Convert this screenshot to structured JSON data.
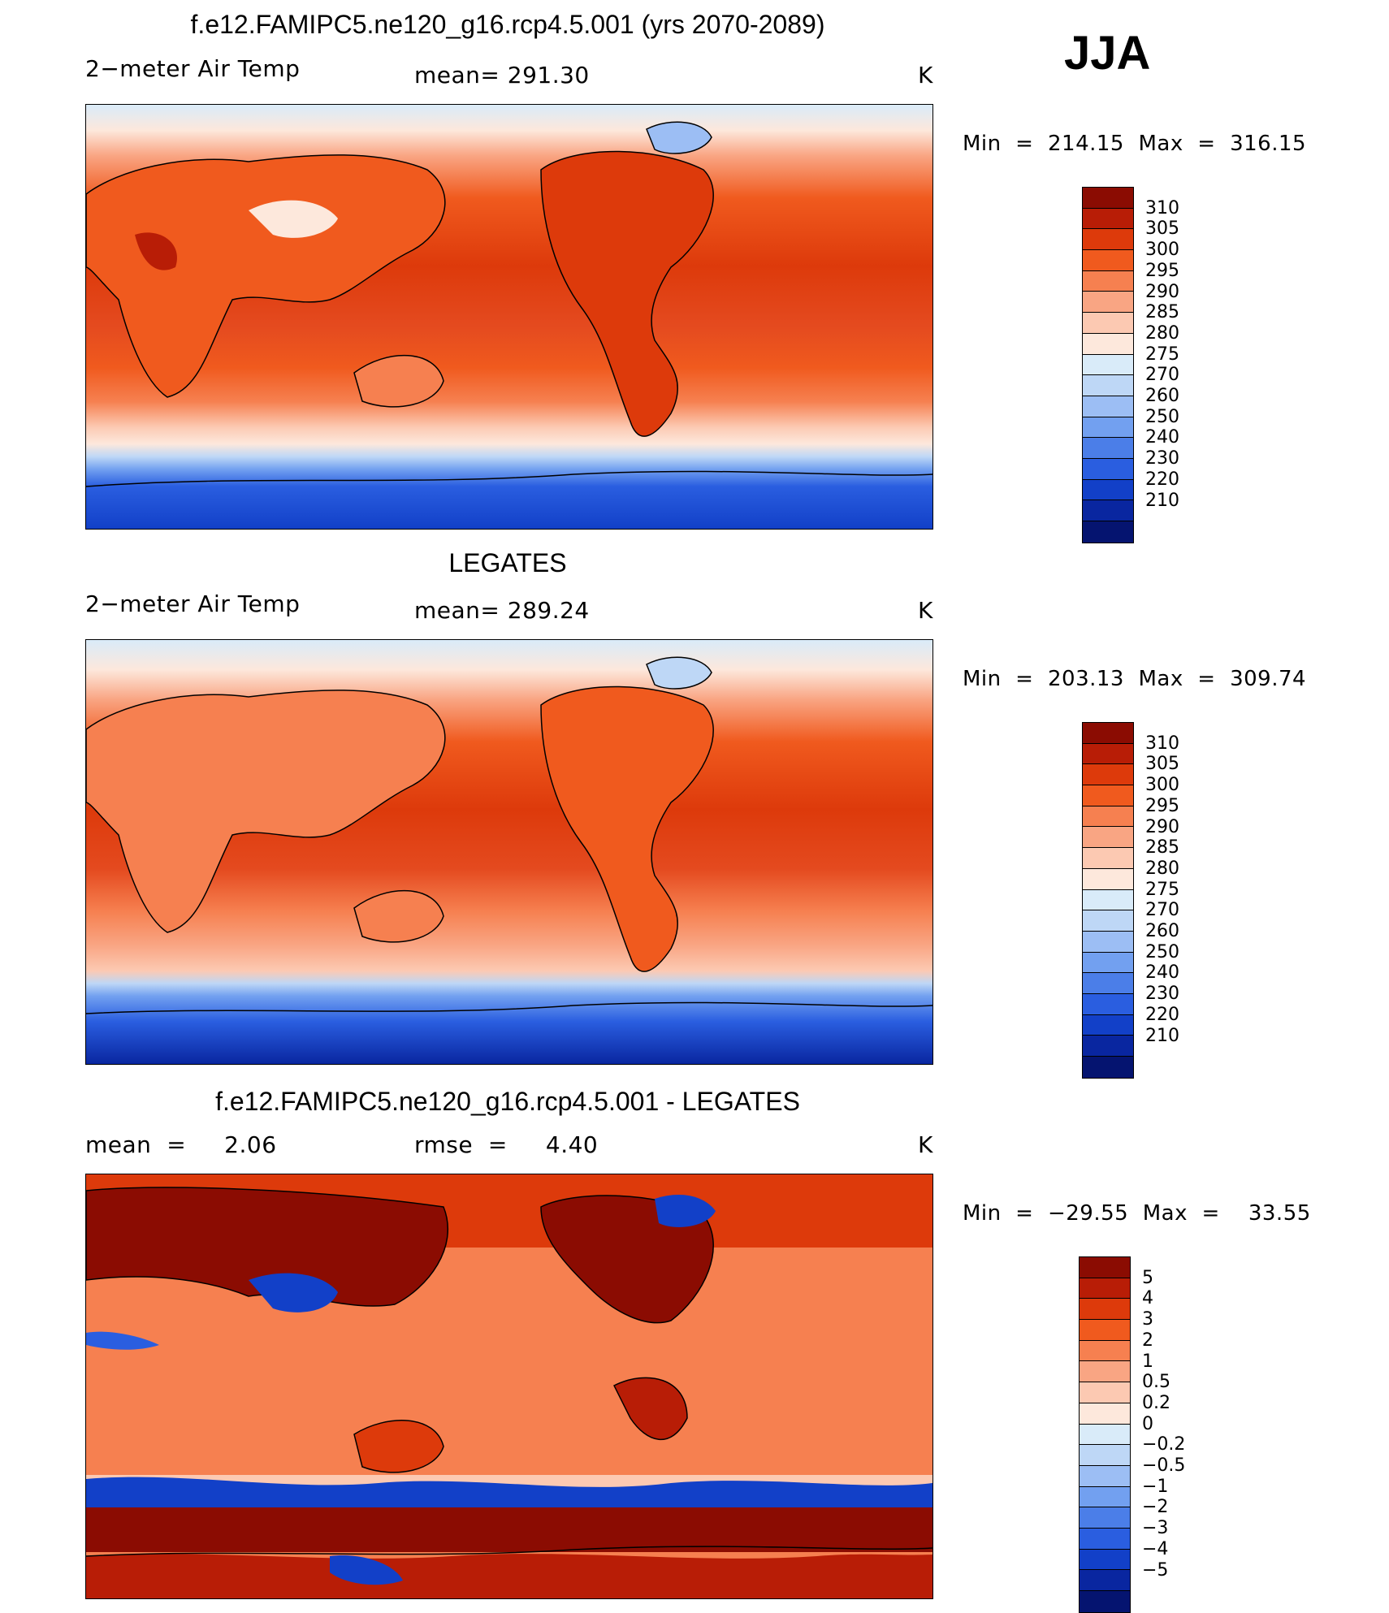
{
  "season": "JJA",
  "temp_colors": [
    "#8b0c02",
    "#b81d06",
    "#dd3a0b",
    "#f05a1e",
    "#f68050",
    "#f9a583",
    "#fcc9b2",
    "#fde8dc",
    "#d9ebf9",
    "#bed7f6",
    "#9cbef4",
    "#72a0f0",
    "#4b7ee8",
    "#2a5ee0",
    "#1240c8",
    "#0926a0",
    "#051470"
  ],
  "temp_labels": [
    "310",
    "305",
    "300",
    "295",
    "290",
    "285",
    "280",
    "275",
    "270",
    "260",
    "250",
    "240",
    "230",
    "220",
    "210"
  ],
  "diff_colors": [
    "#8b0c02",
    "#b81d06",
    "#dd3a0b",
    "#f05a1e",
    "#f68050",
    "#f9a583",
    "#fcc9b2",
    "#fde8dc",
    "#d9ebf9",
    "#bed7f6",
    "#9cbef4",
    "#72a0f0",
    "#4b7ee8",
    "#2a5ee0",
    "#1240c8",
    "#0926a0",
    "#051470"
  ],
  "diff_labels": [
    "5",
    "4",
    "3",
    "2",
    "1",
    "0.5",
    "0.2",
    "0",
    "−0.2",
    "−0.5",
    "−1",
    "−2",
    "−3",
    "−4",
    "−5"
  ],
  "panels": [
    {
      "title": "f.e12.FAMIPC5.ne120_g16.rcp4.5.001 (yrs 2070-2089)",
      "left_label": "2−meter Air Temp",
      "center_label": "mean= 291.30",
      "units": "K",
      "minmax": "Min  =  214.15  Max  =  316.15"
    },
    {
      "title": "LEGATES",
      "left_label": "2−meter Air Temp",
      "center_label": "mean= 289.24",
      "units": "K",
      "minmax": "Min  =  203.13  Max  =  309.74"
    },
    {
      "title": "f.e12.FAMIPC5.ne120_g16.rcp4.5.001 - LEGATES",
      "left_label": "mean  =     2.06",
      "center_label": "rmse  =     4.40",
      "units": "K",
      "minmax": "Min  =  −29.55  Max  =    33.55"
    }
  ]
}
